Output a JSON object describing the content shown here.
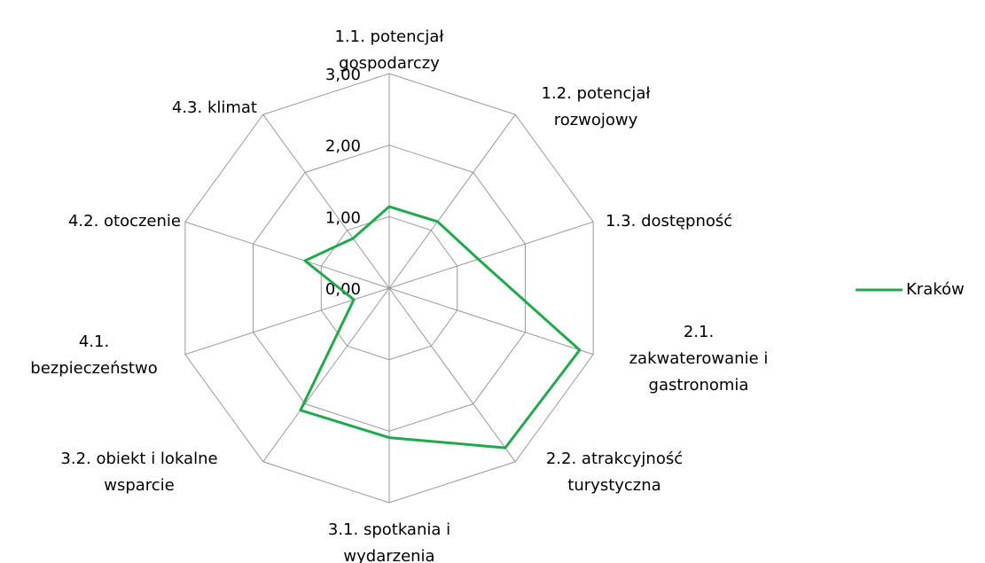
{
  "chart_data": {
    "type": "radar",
    "categories": [
      "1.1. potencjał\ngospodarczy",
      "1.2. potencjał\nrozwojowy",
      "1.3. dostępność",
      "2.1.\nzakwaterowanie i\ngastronomia",
      "2.2. atrakcyjność\nturystyczna",
      "3.1. spotkania i\nwydarzenia",
      "3.2. obiekt i lokalne\nwsparcie",
      "4.1.\nbezpieczeństwo",
      "4.2. otoczenie",
      "4.3. klimat"
    ],
    "series": [
      {
        "name": "Kraków",
        "color": "#1faa4b",
        "values": [
          1.14,
          1.15,
          1.31,
          2.8,
          2.76,
          2.09,
          2.11,
          0.52,
          1.24,
          0.86
        ]
      }
    ],
    "ylim": [
      0,
      3
    ],
    "yticks": [
      {
        "value": 0,
        "label": "0,00"
      },
      {
        "value": 1,
        "label": "1,00"
      },
      {
        "value": 2,
        "label": "2,00"
      },
      {
        "value": 3,
        "label": "3,00"
      }
    ],
    "grid": true,
    "legend": "right"
  }
}
